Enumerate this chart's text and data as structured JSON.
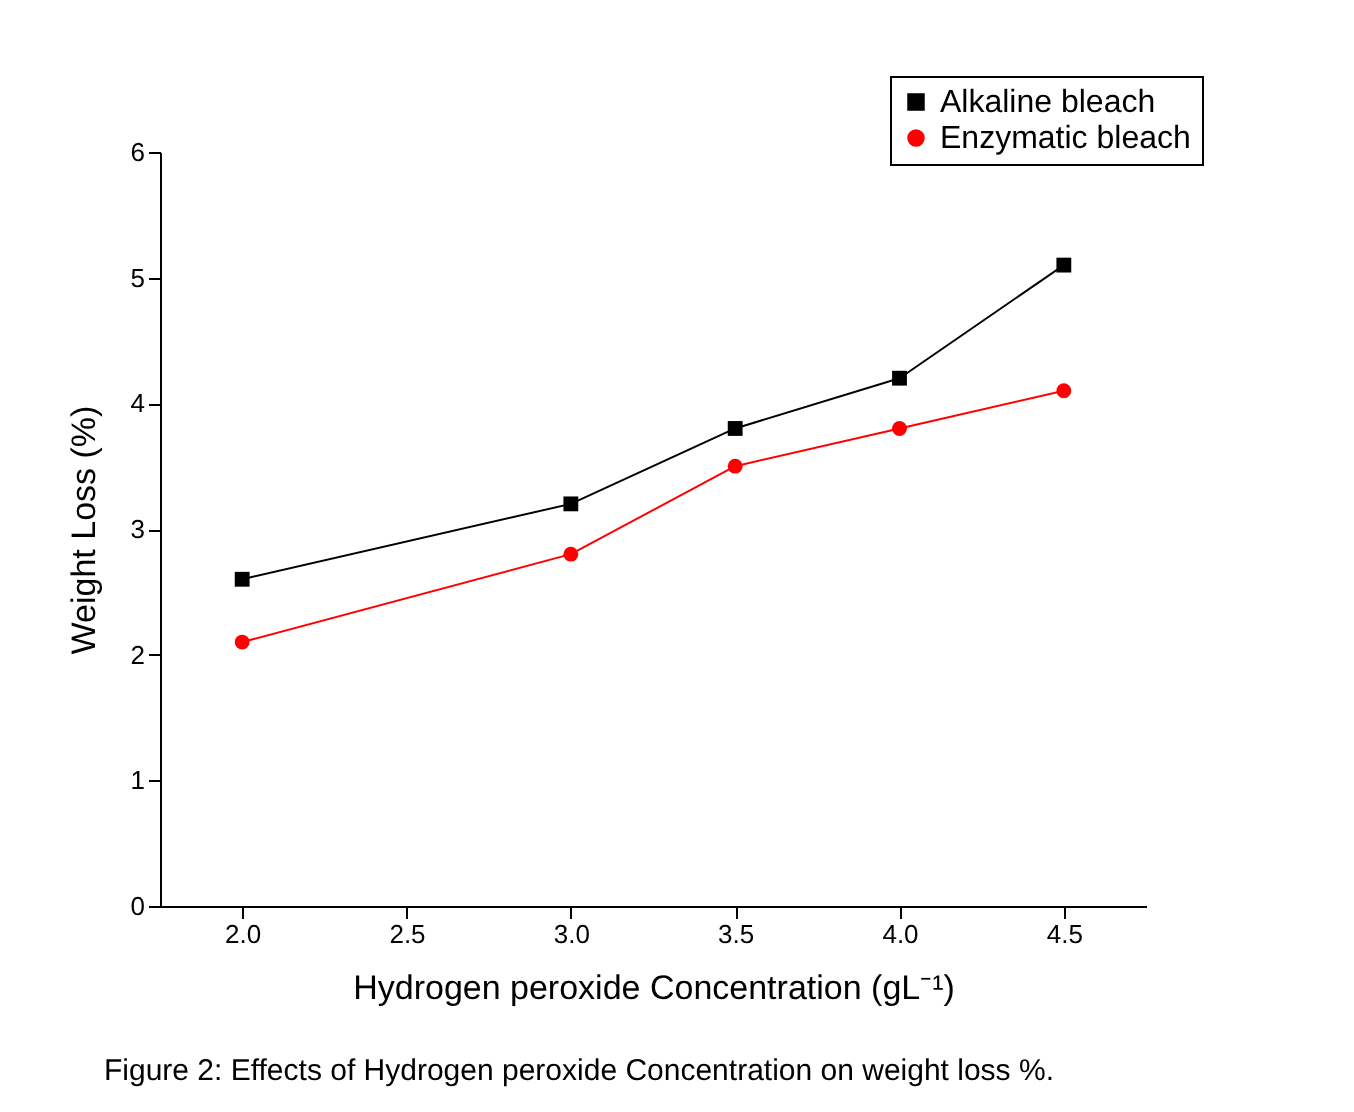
{
  "chart_data": {
    "type": "line",
    "xlabel": "Hydrogen peroxide Concentration (gL⁻¹)",
    "ylabel": "Weight Loss (%)",
    "x": [
      2.0,
      3.0,
      3.5,
      4.0,
      4.5
    ],
    "series": [
      {
        "name": "Alkaline bleach",
        "color": "#000000",
        "marker": "square",
        "values": [
          2.6,
          3.2,
          3.8,
          4.2,
          5.1
        ]
      },
      {
        "name": "Enzymatic bleach",
        "color": "#ff0000",
        "marker": "circle",
        "values": [
          2.1,
          2.8,
          3.5,
          3.8,
          4.1
        ]
      }
    ],
    "xlim": [
      1.75,
      4.75
    ],
    "ylim": [
      0,
      6
    ],
    "xticks": [
      {
        "value": 2,
        "label": "2.0"
      },
      {
        "value": 2.5,
        "label": "2.5"
      },
      {
        "value": 3,
        "label": "3.0"
      },
      {
        "value": 3.5,
        "label": "3.5"
      },
      {
        "value": 4,
        "label": "4.0"
      },
      {
        "value": 4.5,
        "label": "4.5"
      }
    ],
    "yticks": [
      0,
      1,
      2,
      3,
      4,
      5,
      6
    ],
    "grid": false,
    "legend": "top right",
    "annotations": [
      "Figure 2: Effects of Hydrogen peroxide Concentration on weight loss %."
    ]
  }
}
